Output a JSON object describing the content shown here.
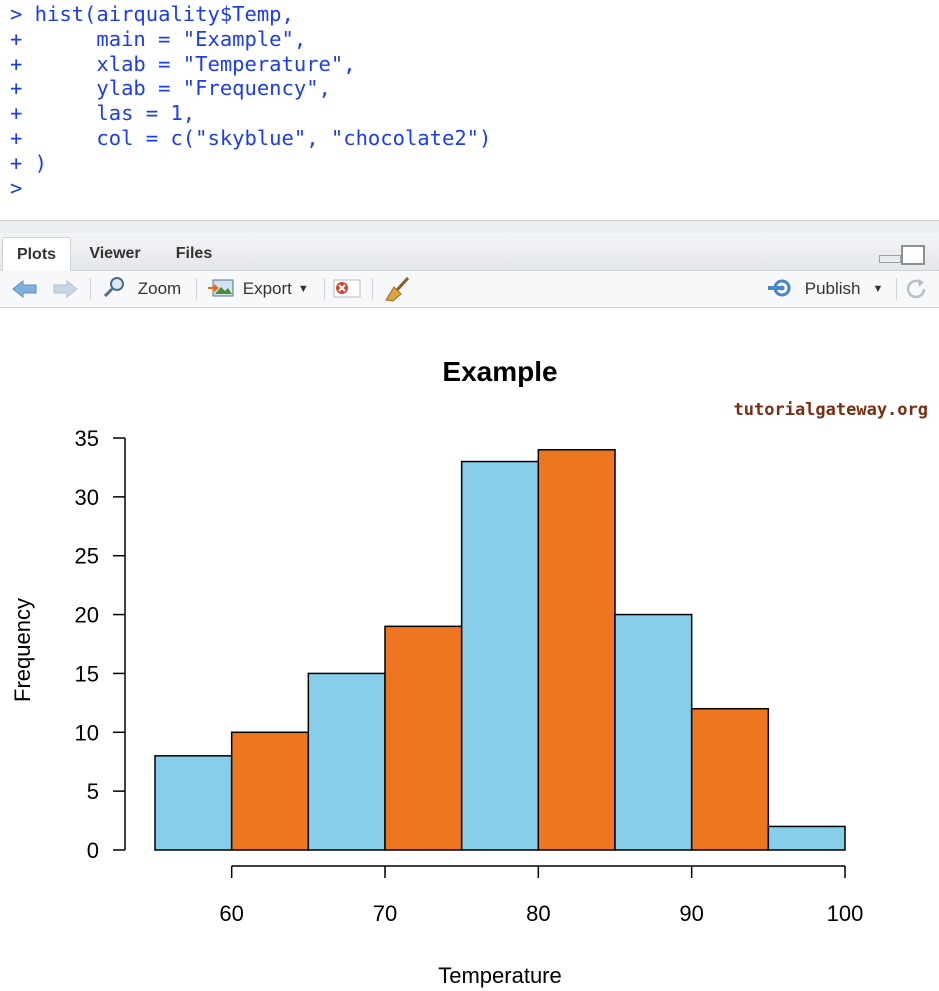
{
  "console": {
    "lines": [
      "> hist(airquality$Temp,",
      "+      main = \"Example\",",
      "+      xlab = \"Temperature\",",
      "+      ylab = \"Frequency\",",
      "+      las = 1,",
      "+      col = c(\"skyblue\", \"chocolate2\")",
      "+ )",
      ">"
    ]
  },
  "tabs": [
    {
      "label": "Plots",
      "active": true
    },
    {
      "label": "Viewer",
      "active": false
    },
    {
      "label": "Files",
      "active": false
    }
  ],
  "toolbar": {
    "zoom_label": "Zoom",
    "export_label": "Export",
    "publish_label": "Publish",
    "icons": [
      "back-arrow-icon",
      "forward-arrow-icon",
      "magnifier-icon",
      "export-image-icon",
      "remove-plot-icon",
      "broom-icon",
      "publish-icon",
      "refresh-icon"
    ]
  },
  "watermark": "tutorialgateway.org",
  "colors": {
    "skyblue": "#87ceeb",
    "chocolate2": "#ee7621",
    "console_text": "#1c3cf0",
    "watermark": "#7a2e12"
  },
  "chart_data": {
    "type": "bar",
    "title": "Example",
    "xlabel": "Temperature",
    "ylabel": "Frequency",
    "bins": [
      {
        "start": 55,
        "end": 60,
        "count": 8
      },
      {
        "start": 60,
        "end": 65,
        "count": 10
      },
      {
        "start": 65,
        "end": 70,
        "count": 15
      },
      {
        "start": 70,
        "end": 75,
        "count": 19
      },
      {
        "start": 75,
        "end": 80,
        "count": 33
      },
      {
        "start": 80,
        "end": 85,
        "count": 34
      },
      {
        "start": 85,
        "end": 90,
        "count": 20
      },
      {
        "start": 90,
        "end": 95,
        "count": 12
      },
      {
        "start": 95,
        "end": 100,
        "count": 2
      }
    ],
    "bar_colors": [
      "#87ceeb",
      "#ee7621"
    ],
    "xticks": [
      60,
      70,
      80,
      90,
      100
    ],
    "yticks": [
      0,
      5,
      10,
      15,
      20,
      25,
      30,
      35
    ],
    "xlim": [
      55,
      100
    ],
    "ylim": [
      0,
      35
    ],
    "grid": false,
    "legend": "none"
  }
}
